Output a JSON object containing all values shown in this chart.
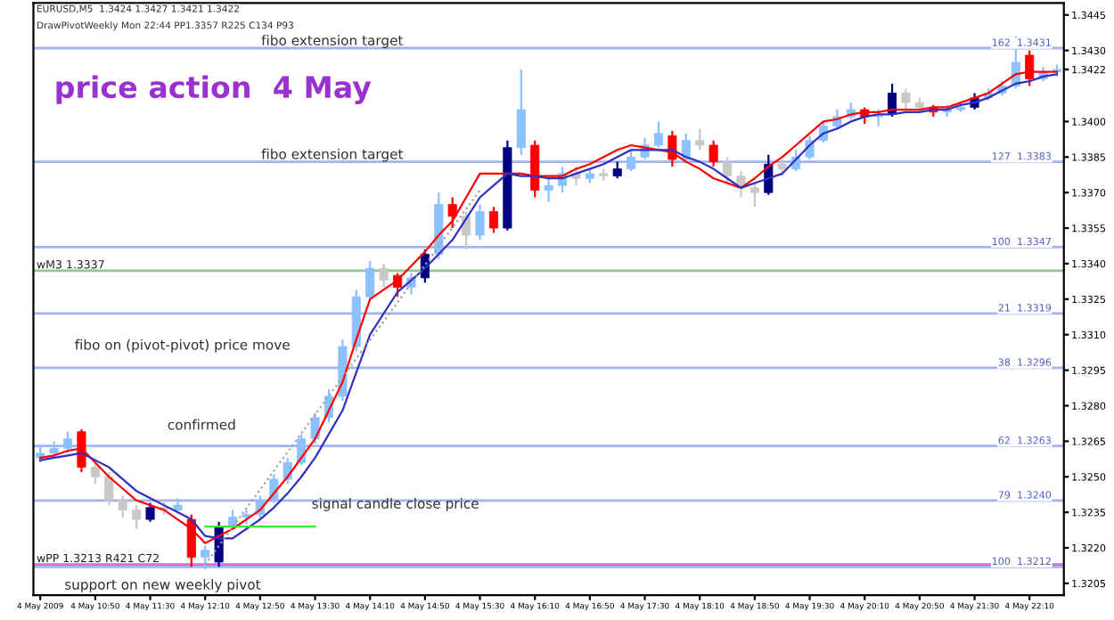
{
  "chart_data": {
    "type": "candlestick",
    "title": "price action  4 May",
    "categories": [
      "4 May 2009",
      null,
      null,
      null,
      "4 May 10:50",
      null,
      null,
      null,
      "4 May 11:30",
      null,
      null,
      null,
      "4 May 12:10",
      null,
      null,
      null,
      "4 May 12:50",
      null,
      null,
      null,
      "4 May 13:30",
      null,
      null,
      null,
      "4 May 14:10",
      null,
      null,
      null,
      "4 May 14:50",
      null,
      null,
      null,
      "4 May 15:30",
      null,
      null,
      null,
      "4 May 16:10",
      null,
      null,
      null,
      "4 May 16:50",
      null,
      null,
      null,
      "4 May 17:30",
      null,
      null,
      null,
      "4 May 18:10",
      null,
      null,
      null,
      "4 May 18:50",
      null,
      null,
      null,
      "4 May 19:30",
      null,
      null,
      null,
      "4 May 20:10",
      null,
      null,
      null,
      "4 May 20:50",
      null,
      null,
      null,
      "4 May 21:30",
      null,
      null,
      null,
      "4 May 22:10",
      null,
      null
    ],
    "ohlc": [
      [
        1.3258,
        1.3263,
        1.3256,
        1.326
      ],
      [
        1.326,
        1.3265,
        1.3258,
        1.3262
      ],
      [
        1.3262,
        1.3269,
        1.326,
        1.3266
      ],
      [
        1.3269,
        1.327,
        1.3252,
        1.3254
      ],
      [
        1.3254,
        1.3256,
        1.3247,
        1.325
      ],
      [
        1.325,
        1.3252,
        1.3238,
        1.324
      ],
      [
        1.324,
        1.3242,
        1.3233,
        1.3236
      ],
      [
        1.3236,
        1.3238,
        1.3228,
        1.3232
      ],
      [
        1.3232,
        1.3239,
        1.3231,
        1.3237
      ],
      [
        1.3237,
        1.324,
        1.3234,
        1.3236
      ],
      [
        1.3236,
        1.3241,
        1.3235,
        1.3238
      ],
      [
        1.3232,
        1.3234,
        1.3212,
        1.3216
      ],
      [
        1.3216,
        1.3221,
        1.3211,
        1.3219
      ],
      [
        1.3214,
        1.3231,
        1.3212,
        1.3229
      ],
      [
        1.3229,
        1.3236,
        1.3228,
        1.3233
      ],
      [
        1.3233,
        1.3236,
        1.323,
        1.3234
      ],
      [
        1.3234,
        1.3242,
        1.3232,
        1.324
      ],
      [
        1.324,
        1.3251,
        1.3239,
        1.3249
      ],
      [
        1.3249,
        1.3258,
        1.3247,
        1.3256
      ],
      [
        1.3256,
        1.3268,
        1.3255,
        1.3266
      ],
      [
        1.3266,
        1.3277,
        1.3264,
        1.3275
      ],
      [
        1.3275,
        1.3287,
        1.3273,
        1.3284
      ],
      [
        1.3284,
        1.3308,
        1.3282,
        1.3305
      ],
      [
        1.3305,
        1.3329,
        1.3303,
        1.3326
      ],
      [
        1.3326,
        1.3341,
        1.3324,
        1.3338
      ],
      [
        1.3338,
        1.334,
        1.333,
        1.3333
      ],
      [
        1.3335,
        1.3336,
        1.3326,
        1.333
      ],
      [
        1.333,
        1.3336,
        1.3327,
        1.3334
      ],
      [
        1.3334,
        1.3346,
        1.3332,
        1.3344
      ],
      [
        1.3344,
        1.337,
        1.3342,
        1.3365
      ],
      [
        1.3365,
        1.3368,
        1.3355,
        1.336
      ],
      [
        1.336,
        1.3362,
        1.3346,
        1.3352
      ],
      [
        1.3352,
        1.3365,
        1.335,
        1.3362
      ],
      [
        1.3362,
        1.3364,
        1.3353,
        1.3355
      ],
      [
        1.3355,
        1.3392,
        1.3354,
        1.3389
      ],
      [
        1.3389,
        1.3422,
        1.3386,
        1.3405
      ],
      [
        1.339,
        1.3392,
        1.3368,
        1.3371
      ],
      [
        1.3371,
        1.3376,
        1.3366,
        1.3373
      ],
      [
        1.3373,
        1.3381,
        1.337,
        1.3378
      ],
      [
        1.3378,
        1.3381,
        1.3373,
        1.3376
      ],
      [
        1.3376,
        1.338,
        1.3374,
        1.3378
      ],
      [
        1.3378,
        1.338,
        1.3375,
        1.3377
      ],
      [
        1.3377,
        1.3383,
        1.3376,
        1.338
      ],
      [
        1.338,
        1.3388,
        1.3379,
        1.3385
      ],
      [
        1.3385,
        1.3393,
        1.3384,
        1.339
      ],
      [
        1.339,
        1.34,
        1.3389,
        1.3395
      ],
      [
        1.3394,
        1.3396,
        1.3381,
        1.3384
      ],
      [
        1.3384,
        1.3395,
        1.3383,
        1.3392
      ],
      [
        1.3392,
        1.3397,
        1.3388,
        1.339
      ],
      [
        1.339,
        1.3392,
        1.3381,
        1.3383
      ],
      [
        1.3383,
        1.3385,
        1.3374,
        1.3377
      ],
      [
        1.3377,
        1.3379,
        1.3368,
        1.3372
      ],
      [
        1.3372,
        1.3374,
        1.3364,
        1.337
      ],
      [
        1.337,
        1.3386,
        1.3369,
        1.3382
      ],
      [
        1.3382,
        1.3384,
        1.3377,
        1.338
      ],
      [
        1.338,
        1.3388,
        1.3379,
        1.3385
      ],
      [
        1.3385,
        1.3394,
        1.3384,
        1.3392
      ],
      [
        1.3392,
        1.34,
        1.3391,
        1.3398
      ],
      [
        1.3398,
        1.3405,
        1.3397,
        1.3402
      ],
      [
        1.3402,
        1.3408,
        1.3401,
        1.3405
      ],
      [
        1.3405,
        1.3406,
        1.3399,
        1.3402
      ],
      [
        1.3402,
        1.3405,
        1.3398,
        1.3403
      ],
      [
        1.3403,
        1.3416,
        1.3402,
        1.3412
      ],
      [
        1.3412,
        1.3414,
        1.3405,
        1.3408
      ],
      [
        1.3408,
        1.341,
        1.3404,
        1.3406
      ],
      [
        1.3406,
        1.3407,
        1.3402,
        1.3404
      ],
      [
        1.3404,
        1.3407,
        1.3402,
        1.3405
      ],
      [
        1.3405,
        1.3408,
        1.3404,
        1.3406
      ],
      [
        1.3406,
        1.3412,
        1.3405,
        1.341
      ],
      [
        1.341,
        1.3414,
        1.3409,
        1.3412
      ],
      [
        1.3412,
        1.3417,
        1.3411,
        1.3415
      ],
      [
        1.3415,
        1.3436,
        1.3414,
        1.3425
      ],
      [
        1.3428,
        1.343,
        1.3415,
        1.3418
      ],
      [
        1.3418,
        1.3423,
        1.3417,
        1.3421
      ],
      [
        1.3421,
        1.3424,
        1.3419,
        1.3422
      ]
    ],
    "colors": [
      "#8cc0ff",
      "#8cc0ff",
      "#8cc0ff",
      "#ff0000",
      "#c8c8c8",
      "#c8c8c8",
      "#c8c8c8",
      "#c8c8c8",
      "#000080",
      "#c8c8c8",
      "#8cc0ff",
      "#ff0000",
      "#8cc0ff",
      "#000080",
      "#8cc0ff",
      "#8cc0ff",
      "#8cc0ff",
      "#8cc0ff",
      "#8cc0ff",
      "#8cc0ff",
      "#8cc0ff",
      "#8cc0ff",
      "#8cc0ff",
      "#8cc0ff",
      "#8cc0ff",
      "#c8c8c8",
      "#ff0000",
      "#8cc0ff",
      "#000080",
      "#8cc0ff",
      "#ff0000",
      "#c8c8c8",
      "#8cc0ff",
      "#ff0000",
      "#000080",
      "#8cc0ff",
      "#ff0000",
      "#8cc0ff",
      "#8cc0ff",
      "#c8c8c8",
      "#8cc0ff",
      "#c8c8c8",
      "#000080",
      "#8cc0ff",
      "#8cc0ff",
      "#8cc0ff",
      "#ff0000",
      "#8cc0ff",
      "#c8c8c8",
      "#ff0000",
      "#c8c8c8",
      "#c8c8c8",
      "#c8c8c8",
      "#000080",
      "#c8c8c8",
      "#8cc0ff",
      "#8cc0ff",
      "#8cc0ff",
      "#8cc0ff",
      "#8cc0ff",
      "#ff0000",
      "#8cc0ff",
      "#000080",
      "#c8c8c8",
      "#c8c8c8",
      "#ff0000",
      "#8cc0ff",
      "#8cc0ff",
      "#000080",
      "#8cc0ff",
      "#8cc0ff",
      "#8cc0ff",
      "#ff0000",
      "#8cc0ff",
      "#8cc0ff"
    ],
    "series": [
      {
        "type": "line",
        "color": "#ff0000",
        "values": [
          1.3258,
          1.3259,
          1.3261,
          1.3262,
          1.3256,
          1.325,
          1.3245,
          1.324,
          1.3238,
          1.3236,
          1.3232,
          1.3228,
          1.3222,
          1.3225,
          1.3228,
          1.3232,
          1.3236,
          1.3243,
          1.325,
          1.3258,
          1.3266,
          1.3278,
          1.329,
          1.3308,
          1.3325,
          1.3329,
          1.3333,
          1.3339,
          1.3345,
          1.3352,
          1.3358,
          1.3368,
          1.3378,
          1.3378,
          1.3378,
          1.3378,
          1.3377,
          1.3377,
          1.3377,
          1.338,
          1.3382,
          1.3385,
          1.3388,
          1.339,
          1.3389,
          1.3388,
          1.3387,
          1.3383,
          1.338,
          1.3376,
          1.3374,
          1.3372,
          1.3376,
          1.3381,
          1.3385,
          1.339,
          1.3395,
          1.34,
          1.3401,
          1.3403,
          1.3404,
          1.3404,
          1.3405,
          1.3405,
          1.3405,
          1.3406,
          1.3406,
          1.3408,
          1.341,
          1.3412,
          1.3416,
          1.342,
          1.3421,
          1.3421,
          1.3421
        ]
      },
      {
        "type": "line",
        "color": "#3030c0",
        "values": [
          1.3257,
          1.3258,
          1.3259,
          1.326,
          1.3257,
          1.3254,
          1.3249,
          1.3244,
          1.3241,
          1.3238,
          1.3235,
          1.3232,
          1.3225,
          1.3224,
          1.3224,
          1.3228,
          1.3232,
          1.3237,
          1.3243,
          1.325,
          1.3258,
          1.3268,
          1.3278,
          1.3294,
          1.331,
          1.3319,
          1.3328,
          1.3333,
          1.3338,
          1.3344,
          1.335,
          1.3359,
          1.3368,
          1.3373,
          1.3378,
          1.3377,
          1.3377,
          1.3376,
          1.3376,
          1.3378,
          1.338,
          1.3382,
          1.3385,
          1.3388,
          1.3388,
          1.3388,
          1.3388,
          1.3385,
          1.3383,
          1.338,
          1.3376,
          1.3372,
          1.3374,
          1.3376,
          1.3378,
          1.3384,
          1.339,
          1.3395,
          1.3397,
          1.34,
          1.3402,
          1.3403,
          1.3403,
          1.3404,
          1.3404,
          1.3405,
          1.3405,
          1.3407,
          1.3408,
          1.341,
          1.3413,
          1.3416,
          1.3417,
          1.3419,
          1.342
        ]
      },
      {
        "type": "line",
        "color": "#33ee33",
        "values": [
          null,
          null,
          null,
          null,
          null,
          null,
          null,
          null,
          null,
          null,
          null,
          null,
          1.3229,
          1.3229,
          1.3229,
          1.3229,
          1.3229,
          1.3229,
          1.3229,
          1.3229,
          1.3229,
          null,
          null,
          null,
          null,
          null,
          null,
          null,
          null,
          null,
          null,
          null,
          null,
          null,
          null,
          null,
          null,
          null,
          null,
          null,
          null,
          null,
          null,
          null,
          null,
          null,
          null,
          null,
          null,
          null,
          null,
          null,
          null,
          null,
          null,
          null,
          null,
          null,
          null,
          null,
          null,
          null,
          null,
          null,
          null,
          null,
          null,
          null,
          null,
          null,
          null,
          null,
          null,
          null,
          null
        ]
      },
      {
        "type": "line",
        "color": "#a0a0a0",
        "line_style": "dotted",
        "values": [
          null,
          null,
          null,
          null,
          null,
          null,
          null,
          null,
          null,
          null,
          null,
          null,
          1.3213,
          null,
          null,
          null,
          null,
          null,
          null,
          null,
          null,
          null,
          null,
          null,
          null,
          null,
          null,
          null,
          null,
          null,
          null,
          null,
          1.3371,
          null,
          null,
          null,
          null,
          null,
          null,
          null,
          null,
          null,
          null,
          null,
          null,
          null,
          null,
          null,
          null,
          null,
          null,
          null,
          null,
          null,
          null,
          null,
          null,
          null,
          null,
          null,
          null,
          null,
          null,
          null,
          null,
          null,
          null,
          null,
          null,
          null,
          null,
          null,
          null,
          null,
          null
        ]
      }
    ],
    "ref_lines": [
      {
        "axis": "y",
        "value": 1.3431,
        "label": "162  1.3431",
        "color": "#a0b4f0"
      },
      {
        "axis": "y",
        "value": 1.3383,
        "label": "127  1.3383",
        "color": "#a0b4f0"
      },
      {
        "axis": "y",
        "value": 1.3347,
        "label": "100  1.3347",
        "color": "#a0b4f0"
      },
      {
        "axis": "y",
        "value": 1.3319,
        "label": "21  1.3319",
        "color": "#a0b4f0"
      },
      {
        "axis": "y",
        "value": 1.3296,
        "label": "38  1.3296",
        "color": "#a0b4f0"
      },
      {
        "axis": "y",
        "value": 1.3263,
        "label": "62  1.3263",
        "color": "#a0b4f0"
      },
      {
        "axis": "y",
        "value": 1.324,
        "label": "79  1.3240",
        "color": "#a0b4f0"
      },
      {
        "axis": "y",
        "value": 1.3212,
        "label": "100  1.3212",
        "color": "#a0b4f0"
      },
      {
        "axis": "y",
        "value": 1.3337,
        "label": "wM3 1.3337",
        "color": "#90c890"
      },
      {
        "axis": "y",
        "value": 1.3213,
        "label": "wPP 1.3213 R421 C72",
        "color": "#d070d0"
      }
    ],
    "annotations": [
      "EURUSD,M5  1.3424 1.3427 1.3421 1.3422",
      "DrawPivotWeekly Mon 22:44 PP1.3357 R225 C134 P93",
      "confirmed",
      "signal candle close price",
      "support on new weekly pivot",
      "fibo on (pivot-pivot) price move",
      {
        "text": "fibo extension target",
        "y": 1.3431
      },
      {
        "text": "fibo extension target",
        "y": 1.3383
      }
    ],
    "ylim": [
      1.32,
      1.345
    ],
    "yticks": [
      1.3445,
      {
        "value": 1.343,
        "label": "1.3430"
      },
      1.3422,
      {
        "value": 1.34,
        "label": "1.3400"
      },
      1.3385,
      {
        "value": 1.337,
        "label": "1.3370"
      },
      1.3355,
      {
        "value": 1.334,
        "label": "1.3340"
      },
      1.3325,
      {
        "value": 1.331,
        "label": "1.3310"
      },
      1.3295,
      {
        "value": 1.328,
        "label": "1.3280"
      },
      1.3265,
      {
        "value": 1.325,
        "label": "1.3250"
      },
      1.3235,
      {
        "value": 1.322,
        "label": "1.3220"
      },
      1.3205
    ]
  }
}
